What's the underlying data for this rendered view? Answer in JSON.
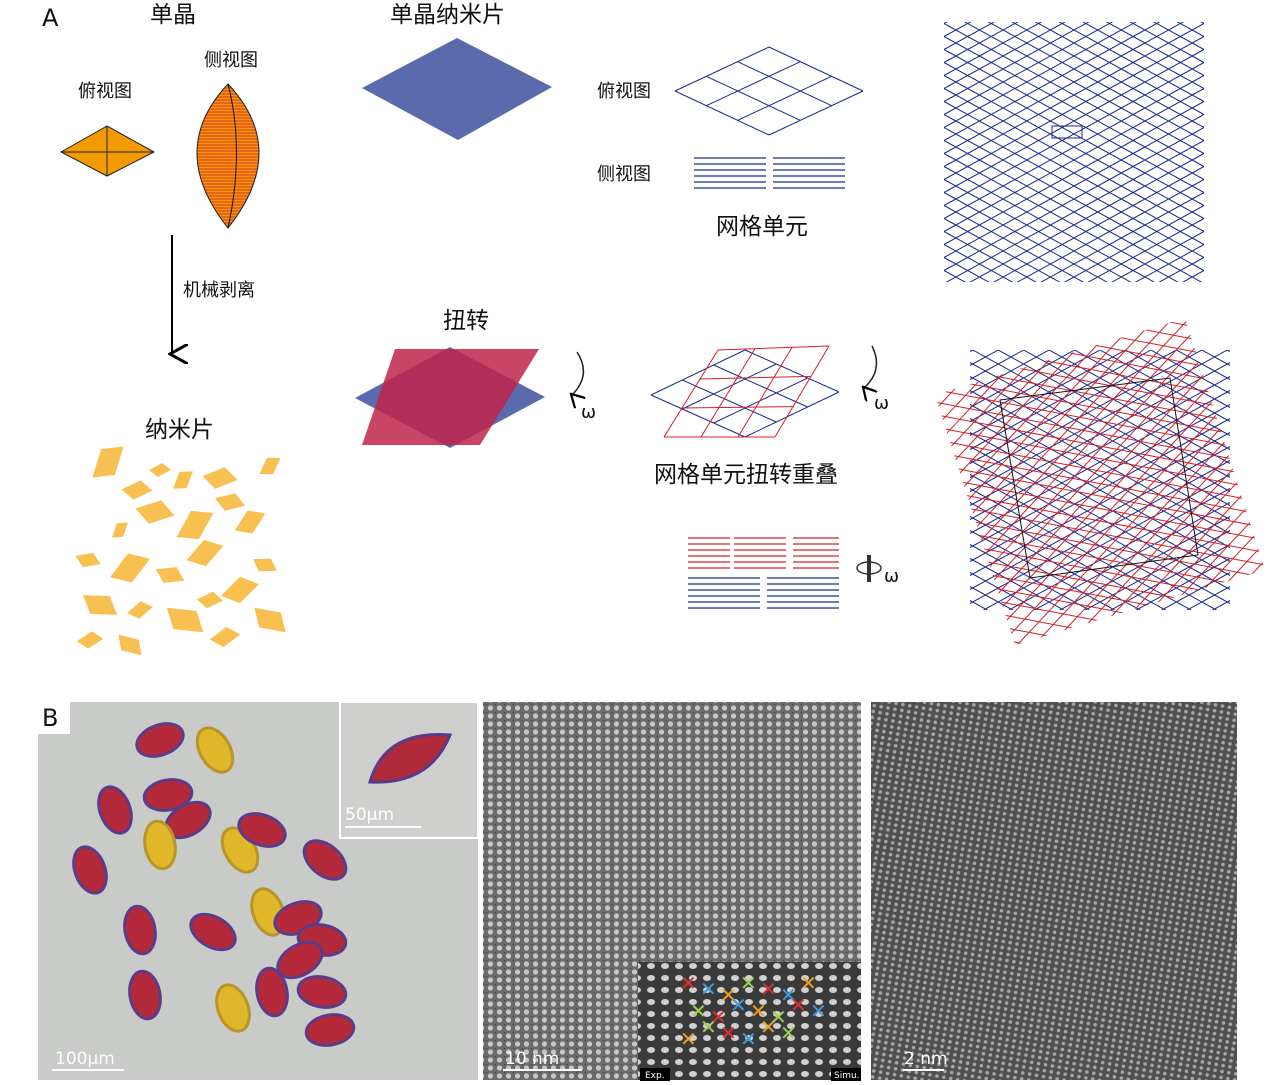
{
  "panel_a": {
    "label": "A",
    "single_crystal": "单晶",
    "top_view": "俯视图",
    "side_view": "侧视图",
    "exfoliation": "机械剥离",
    "nanosheet": "纳米片",
    "single_crystal_nanosheet": "单晶纳米片",
    "top_view_2": "俯视图",
    "side_view_2": "侧视图",
    "grid_unit": "网格单元",
    "twist": "扭转",
    "omega": "ω",
    "grid_twist_overlap": "网格单元扭转重叠",
    "colors": {
      "orange": "#f29a00",
      "crystal_side": "#e8641a",
      "blue": "#5b69ad",
      "red": "#c0244a",
      "grid_blue": "#1a2a8c",
      "grid_red": "#d0202a",
      "flake": "#f7b531"
    }
  },
  "panel_b": {
    "label": "B",
    "optical_scale": "100μm",
    "inset_scale": "50μm",
    "tem_scale": "10 nm",
    "inset_exp": "Exp.",
    "inset_simu": "Simu.",
    "hrtem_scale": "2 nm"
  }
}
